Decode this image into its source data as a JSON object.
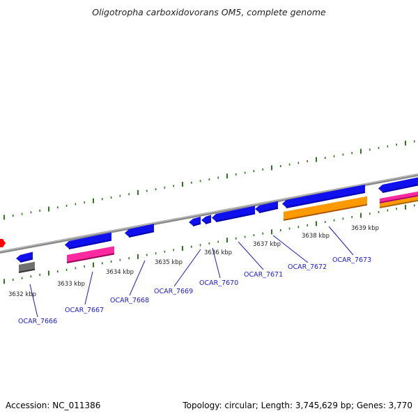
{
  "title": "Oligotropha carboxidovorans OM5, complete genome",
  "footer": {
    "accession": "Accession: NC_011386",
    "summary": "Topology: circular; Length: 3,745,629 bp; Genes: 3,770"
  },
  "colors": {
    "forward_cds": "#1010ee",
    "reverse_cds": "#1010ee",
    "rrna": "#ff2aa0",
    "other": "#ff9900",
    "pseudo": "#707070",
    "ticks": "#2a7a1a",
    "backbone": "#8a8a8a",
    "label": "#1a1acc",
    "arrow_red": "#ff0000"
  },
  "kbp_labels": [
    "3632 kbp",
    "3633 kbp",
    "3634 kbp",
    "3635 kbp",
    "3636 kbp",
    "3637 kbp",
    "3638 kbp",
    "3639 kbp"
  ],
  "gene_labels": [
    "OCAR_7666",
    "OCAR_7667",
    "OCAR_7668",
    "OCAR_7669",
    "OCAR_7670",
    "OCAR_7671",
    "OCAR_7672",
    "OCAR_7673"
  ]
}
